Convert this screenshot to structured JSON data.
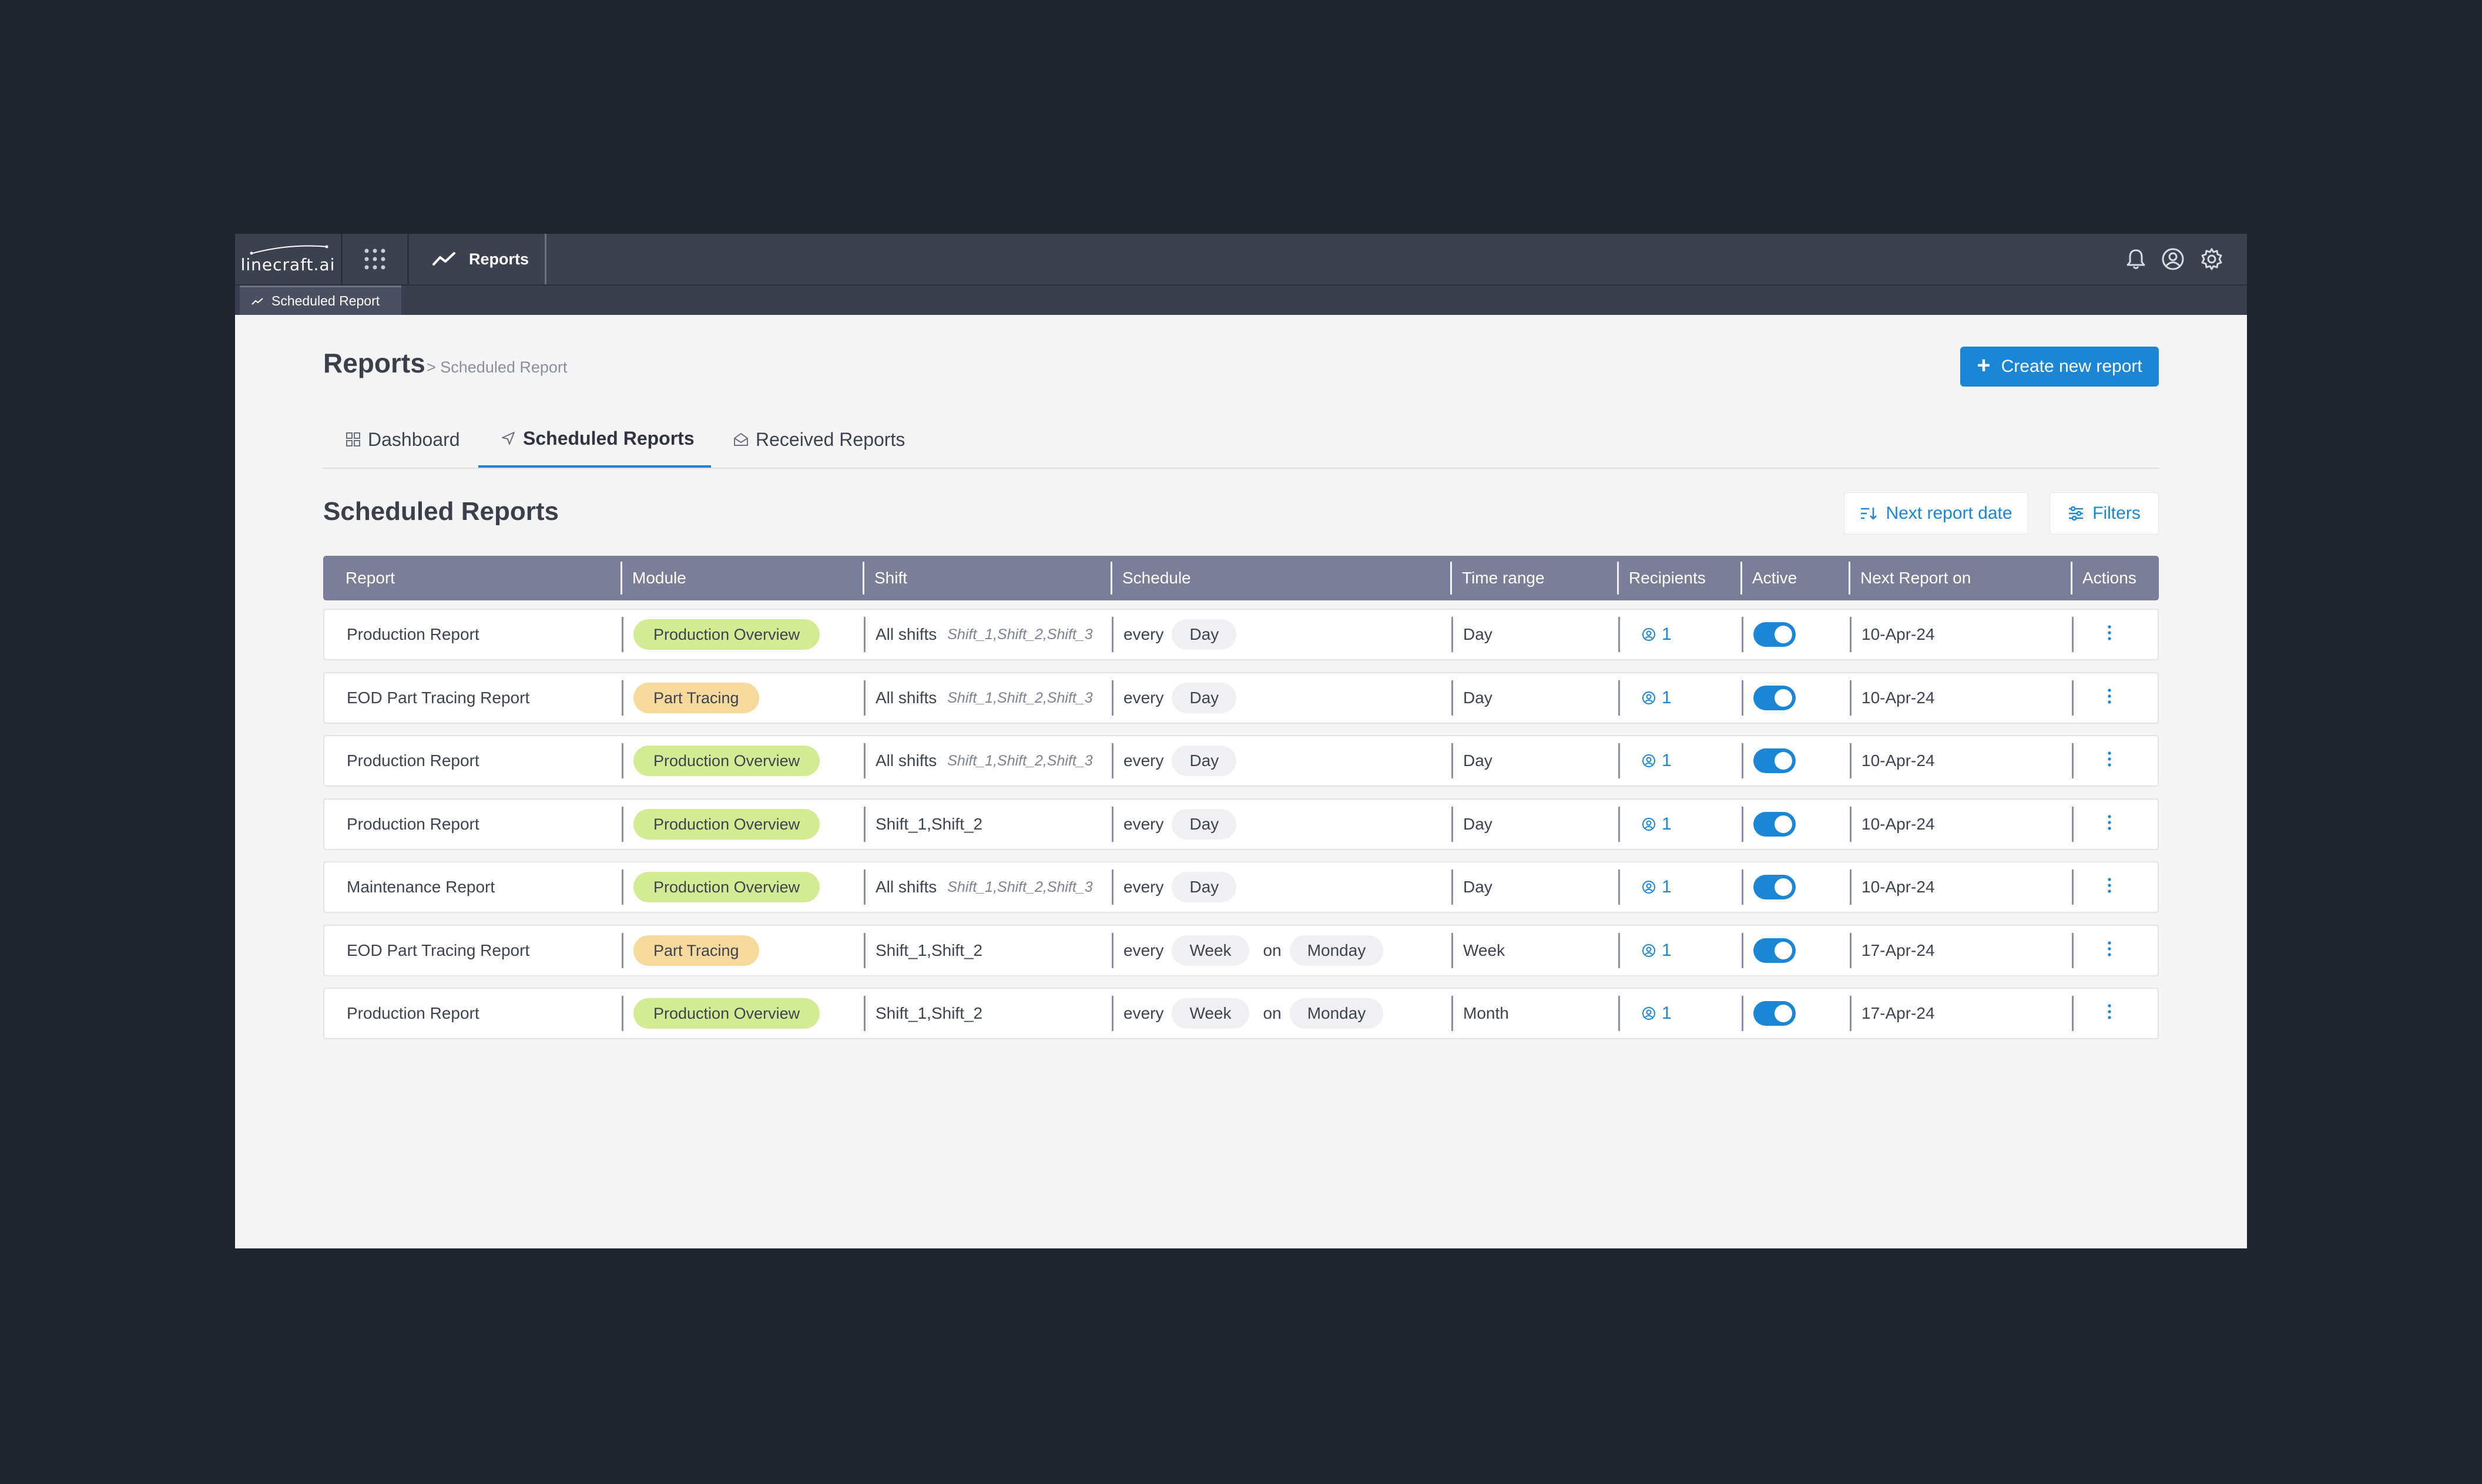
{
  "topbar": {
    "logo": "linecraft.ai",
    "active_app": "Reports",
    "icons": [
      "bell-icon",
      "user-icon",
      "gear-icon"
    ]
  },
  "subtab": {
    "label": "Scheduled Report"
  },
  "header": {
    "title": "Reports",
    "breadcrumb": "> Scheduled Report",
    "create_button": "Create new report"
  },
  "tabs": [
    {
      "label": "Dashboard",
      "active": false
    },
    {
      "label": "Scheduled Reports",
      "active": true
    },
    {
      "label": "Received Reports",
      "active": false
    }
  ],
  "section": {
    "title": "Scheduled Reports",
    "sort_button": "Next report date",
    "filter_button": "Filters"
  },
  "table": {
    "columns": [
      "Report",
      "Module",
      "Shift",
      "Schedule",
      "Time range",
      "Recipients",
      "Active",
      "Next Report on",
      "Actions"
    ],
    "rows": [
      {
        "report": "Production Report",
        "module": "Production Overview",
        "module_color": "green",
        "shift_main": "All shifts",
        "shift_detail": "Shift_1,Shift_2,Shift_3",
        "sched_every": "every",
        "sched_unit": "Day",
        "sched_on": "",
        "sched_day": "",
        "time_range": "Day",
        "recipients": "1",
        "active": true,
        "next": "10-Apr-24"
      },
      {
        "report": "EOD Part Tracing Report",
        "module": "Part Tracing",
        "module_color": "orange",
        "shift_main": "All shifts",
        "shift_detail": "Shift_1,Shift_2,Shift_3",
        "sched_every": "every",
        "sched_unit": "Day",
        "sched_on": "",
        "sched_day": "",
        "time_range": "Day",
        "recipients": "1",
        "active": true,
        "next": "10-Apr-24"
      },
      {
        "report": "Production Report",
        "module": "Production Overview",
        "module_color": "green",
        "shift_main": "All shifts",
        "shift_detail": "Shift_1,Shift_2,Shift_3",
        "sched_every": "every",
        "sched_unit": "Day",
        "sched_on": "",
        "sched_day": "",
        "time_range": "Day",
        "recipients": "1",
        "active": true,
        "next": "10-Apr-24"
      },
      {
        "report": "Production Report",
        "module": "Production Overview",
        "module_color": "green",
        "shift_main": "Shift_1,Shift_2",
        "shift_detail": "",
        "sched_every": "every",
        "sched_unit": "Day",
        "sched_on": "",
        "sched_day": "",
        "time_range": "Day",
        "recipients": "1",
        "active": true,
        "next": "10-Apr-24"
      },
      {
        "report": "Maintenance Report",
        "module": "Production Overview",
        "module_color": "green",
        "shift_main": "All shifts",
        "shift_detail": "Shift_1,Shift_2,Shift_3",
        "sched_every": "every",
        "sched_unit": "Day",
        "sched_on": "",
        "sched_day": "",
        "time_range": "Day",
        "recipients": "1",
        "active": true,
        "next": "10-Apr-24"
      },
      {
        "report": "EOD Part Tracing Report",
        "module": "Part Tracing",
        "module_color": "orange",
        "shift_main": "Shift_1,Shift_2",
        "shift_detail": "",
        "sched_every": "every",
        "sched_unit": "Week",
        "sched_on": "on",
        "sched_day": "Monday",
        "time_range": "Week",
        "recipients": "1",
        "active": true,
        "next": "17-Apr-24"
      },
      {
        "report": "Production Report",
        "module": "Production Overview",
        "module_color": "green",
        "shift_main": "Shift_1,Shift_2",
        "shift_detail": "",
        "sched_every": "every",
        "sched_unit": "Week",
        "sched_on": "on",
        "sched_day": "Monday",
        "time_range": "Month",
        "recipients": "1",
        "active": true,
        "next": "17-Apr-24"
      }
    ]
  },
  "colors": {
    "accent": "#1b86d6",
    "module_green": "#d3ec93",
    "module_orange": "#f7d99b",
    "table_header": "#7a7f97",
    "topbar": "#3c4150"
  }
}
